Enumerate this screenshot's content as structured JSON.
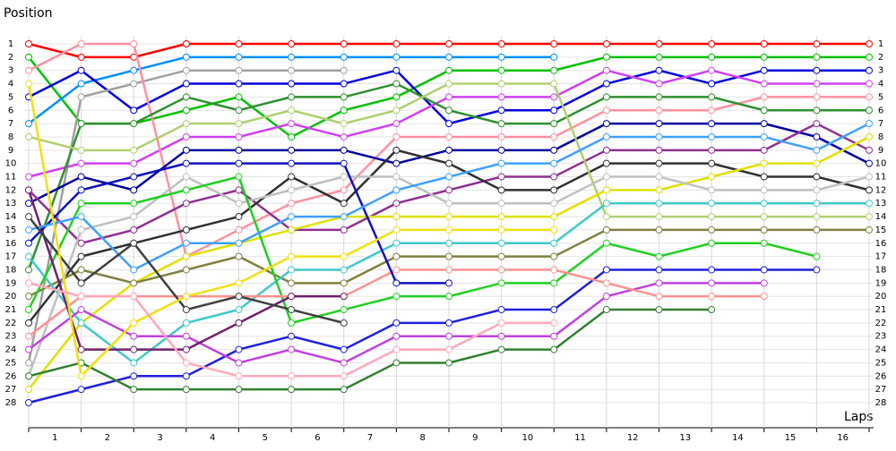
{
  "chart_data": {
    "type": "line",
    "y_label": "Position",
    "x_label": "Laps",
    "laps": [
      "1",
      "2",
      "3",
      "4",
      "5",
      "6",
      "7",
      "8",
      "9",
      "10",
      "11",
      "12",
      "13",
      "14",
      "15",
      "16"
    ],
    "x": [
      0,
      1,
      2,
      3,
      4,
      5,
      6,
      7,
      8,
      9,
      10,
      11,
      12,
      13,
      14,
      15,
      16
    ],
    "xlim": [
      0,
      16
    ],
    "ylim": [
      1,
      28
    ],
    "yticks": [
      1,
      2,
      3,
      4,
      5,
      6,
      7,
      8,
      9,
      10,
      11,
      12,
      13,
      14,
      15,
      16,
      17,
      18,
      19,
      20,
      21,
      22,
      23,
      24,
      25,
      26,
      27,
      28
    ],
    "reversed_y": true,
    "grid": true,
    "series": [
      {
        "color": "#ff0000",
        "values": [
          1,
          2,
          2,
          1,
          1,
          1,
          1,
          1,
          1,
          1,
          1,
          1,
          1,
          1,
          1,
          1,
          1
        ]
      },
      {
        "color": "#00c000",
        "values": [
          2,
          7,
          7,
          6,
          5,
          8,
          6,
          5,
          3,
          3,
          3,
          2,
          2,
          2,
          2,
          2,
          2
        ]
      },
      {
        "color": "#0090ff",
        "values": [
          7,
          4,
          3,
          2,
          2,
          2,
          2,
          2,
          2,
          2,
          2,
          null,
          null,
          null,
          null,
          null,
          null
        ]
      },
      {
        "color": "#0000e0",
        "values": [
          5,
          3,
          6,
          4,
          4,
          4,
          4,
          3,
          7,
          6,
          6,
          4,
          3,
          4,
          3,
          3,
          3
        ]
      },
      {
        "color": "#a0a0a0",
        "values": [
          25,
          5,
          4,
          3,
          3,
          3,
          3,
          null,
          null,
          null,
          null,
          null,
          null,
          null,
          null,
          null,
          null
        ]
      },
      {
        "color": "#d040f0",
        "values": [
          11,
          10,
          10,
          8,
          8,
          7,
          8,
          7,
          5,
          5,
          5,
          3,
          4,
          3,
          4,
          4,
          4
        ]
      },
      {
        "color": "#ff90a0",
        "values": [
          3,
          1,
          1,
          17,
          15,
          13,
          12,
          8,
          8,
          8,
          8,
          6,
          6,
          6,
          5,
          5,
          5
        ]
      },
      {
        "color": "#309030",
        "values": [
          18,
          7,
          7,
          5,
          6,
          5,
          5,
          4,
          6,
          7,
          7,
          5,
          5,
          5,
          6,
          6,
          6
        ]
      },
      {
        "color": "#0000a0",
        "values": [
          13,
          11,
          12,
          9,
          9,
          9,
          9,
          10,
          9,
          9,
          9,
          7,
          7,
          7,
          7,
          8,
          10
        ]
      },
      {
        "color": "#903090",
        "values": [
          12,
          16,
          15,
          13,
          12,
          15,
          15,
          13,
          12,
          11,
          11,
          9,
          9,
          9,
          9,
          7,
          9
        ]
      },
      {
        "color": "#303030",
        "values": [
          22,
          17,
          16,
          15,
          14,
          11,
          13,
          9,
          10,
          12,
          12,
          10,
          10,
          10,
          11,
          11,
          12
        ]
      },
      {
        "color": "#b0d070",
        "values": [
          8,
          9,
          9,
          7,
          7,
          6,
          7,
          6,
          4,
          4,
          4,
          14,
          14,
          14,
          14,
          14,
          14
        ]
      },
      {
        "color": "#e0e000",
        "values": [
          27,
          22,
          19,
          17,
          16,
          15,
          14,
          14,
          14,
          14,
          14,
          12,
          12,
          11,
          10,
          10,
          8
        ]
      },
      {
        "color": "#808040",
        "values": [
          20,
          18,
          19,
          18,
          17,
          19,
          19,
          17,
          17,
          17,
          17,
          15,
          15,
          15,
          15,
          15,
          15
        ]
      },
      {
        "color": "#40c8c8",
        "values": [
          17,
          22,
          25,
          22,
          21,
          18,
          18,
          16,
          16,
          16,
          16,
          13,
          13,
          13,
          13,
          13,
          13
        ]
      },
      {
        "color": "#c0c0c0",
        "values": [
          26,
          15,
          14,
          11,
          13,
          12,
          11,
          11,
          13,
          13,
          13,
          11,
          11,
          12,
          12,
          12,
          11
        ]
      },
      {
        "color": "#20d020",
        "values": [
          21,
          13,
          13,
          12,
          11,
          22,
          21,
          20,
          20,
          19,
          19,
          16,
          17,
          16,
          16,
          17,
          null
        ]
      },
      {
        "color": "#2020e0",
        "values": [
          28,
          27,
          26,
          26,
          24,
          23,
          24,
          22,
          22,
          21,
          21,
          18,
          18,
          18,
          18,
          18,
          null
        ]
      },
      {
        "color": "#c040e0",
        "values": [
          24,
          21,
          23,
          23,
          25,
          24,
          25,
          23,
          23,
          23,
          23,
          20,
          19,
          19,
          19,
          null,
          null
        ]
      },
      {
        "color": "#ff9090",
        "values": [
          23,
          20,
          20,
          20,
          20,
          20,
          20,
          18,
          18,
          18,
          18,
          19,
          20,
          20,
          20,
          null,
          null
        ]
      },
      {
        "color": "#308030",
        "values": [
          26,
          25,
          27,
          27,
          27,
          27,
          27,
          25,
          25,
          24,
          24,
          21,
          21,
          21,
          null,
          null,
          null
        ]
      },
      {
        "color": "#702070",
        "values": [
          12,
          24,
          24,
          24,
          22,
          20,
          20,
          null,
          null,
          null,
          null,
          null,
          null,
          null,
          null,
          null,
          null
        ]
      },
      {
        "color": "#1010c0",
        "values": [
          16,
          12,
          11,
          10,
          10,
          10,
          10,
          19,
          19,
          null,
          null,
          null,
          null,
          null,
          null,
          null,
          null
        ]
      },
      {
        "color": "#40a0ff",
        "values": [
          15,
          14,
          18,
          16,
          16,
          14,
          14,
          12,
          11,
          10,
          10,
          8,
          8,
          8,
          8,
          9,
          7
        ]
      },
      {
        "color": "#404040",
        "values": [
          14,
          19,
          16,
          21,
          20,
          21,
          22,
          null,
          null,
          null,
          null,
          null,
          null,
          null,
          null,
          null,
          null
        ]
      },
      {
        "color": "#f0e010",
        "values": [
          4,
          26,
          22,
          20,
          19,
          17,
          17,
          15,
          15,
          15,
          15,
          null,
          null,
          null,
          null,
          null,
          null
        ]
      },
      {
        "color": "#ffa8b8",
        "values": [
          19,
          20,
          20,
          25,
          26,
          26,
          26,
          24,
          24,
          22,
          22,
          null,
          null,
          null,
          null,
          null,
          null
        ]
      }
    ]
  }
}
